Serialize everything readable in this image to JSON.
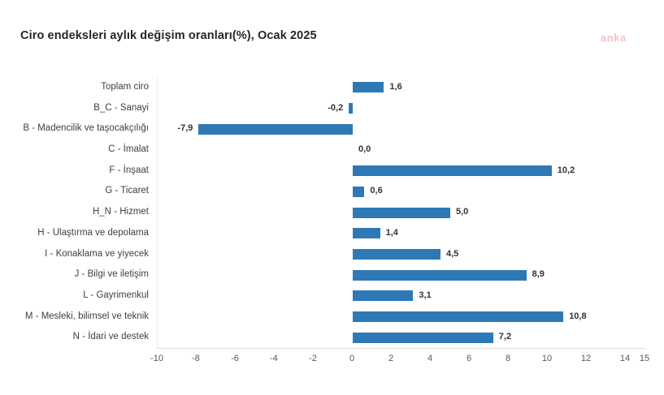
{
  "header": {
    "title": "Ciro endeksleri aylık değişim oranları(%), Ocak 2025"
  },
  "logo": {
    "text": "anka",
    "color": "#f4c3c8"
  },
  "colors": {
    "bar": "#2e79b5",
    "title_text": "#262626",
    "category_text": "#404040",
    "value_text": "#333333",
    "tick_text": "#575757",
    "axis_line": "#dcdcdc"
  },
  "chart_data": {
    "type": "bar",
    "orientation": "horizontal",
    "title": "Ciro endeksleri aylık değişim oranları(%), Ocak 2025",
    "categories": [
      "Toplam ciro",
      "B_C - Sanayi",
      "B - Madencilik ve taşocakçılığı",
      "C - İmalat",
      "F - İnşaat",
      "G - Ticaret",
      "H_N - Hizmet",
      "H - Ulaştırma ve depolama",
      "I - Konaklama ve yiyecek",
      "J - Bilgi ve iletişim",
      "L - Gayrimenkul",
      "M - Mesleki, bilimsel ve teknik",
      "N - İdari ve destek"
    ],
    "values": [
      1.6,
      -0.2,
      -7.9,
      0.0,
      10.2,
      0.6,
      5.0,
      1.4,
      4.5,
      8.9,
      3.1,
      10.8,
      7.2
    ],
    "value_labels": [
      "1,6",
      "-0,2",
      "-7,9",
      "0,0",
      "10,2",
      "0,6",
      "5,0",
      "1,4",
      "4,5",
      "8,9",
      "3,1",
      "10,8",
      "7,2"
    ],
    "xlabel": "",
    "ylabel": "",
    "xlim": [
      -10,
      15
    ],
    "xticks": [
      -10,
      -8,
      -6,
      -4,
      -2,
      0,
      2,
      4,
      6,
      8,
      10,
      12,
      14,
      15
    ],
    "grid": false,
    "legend": false
  }
}
